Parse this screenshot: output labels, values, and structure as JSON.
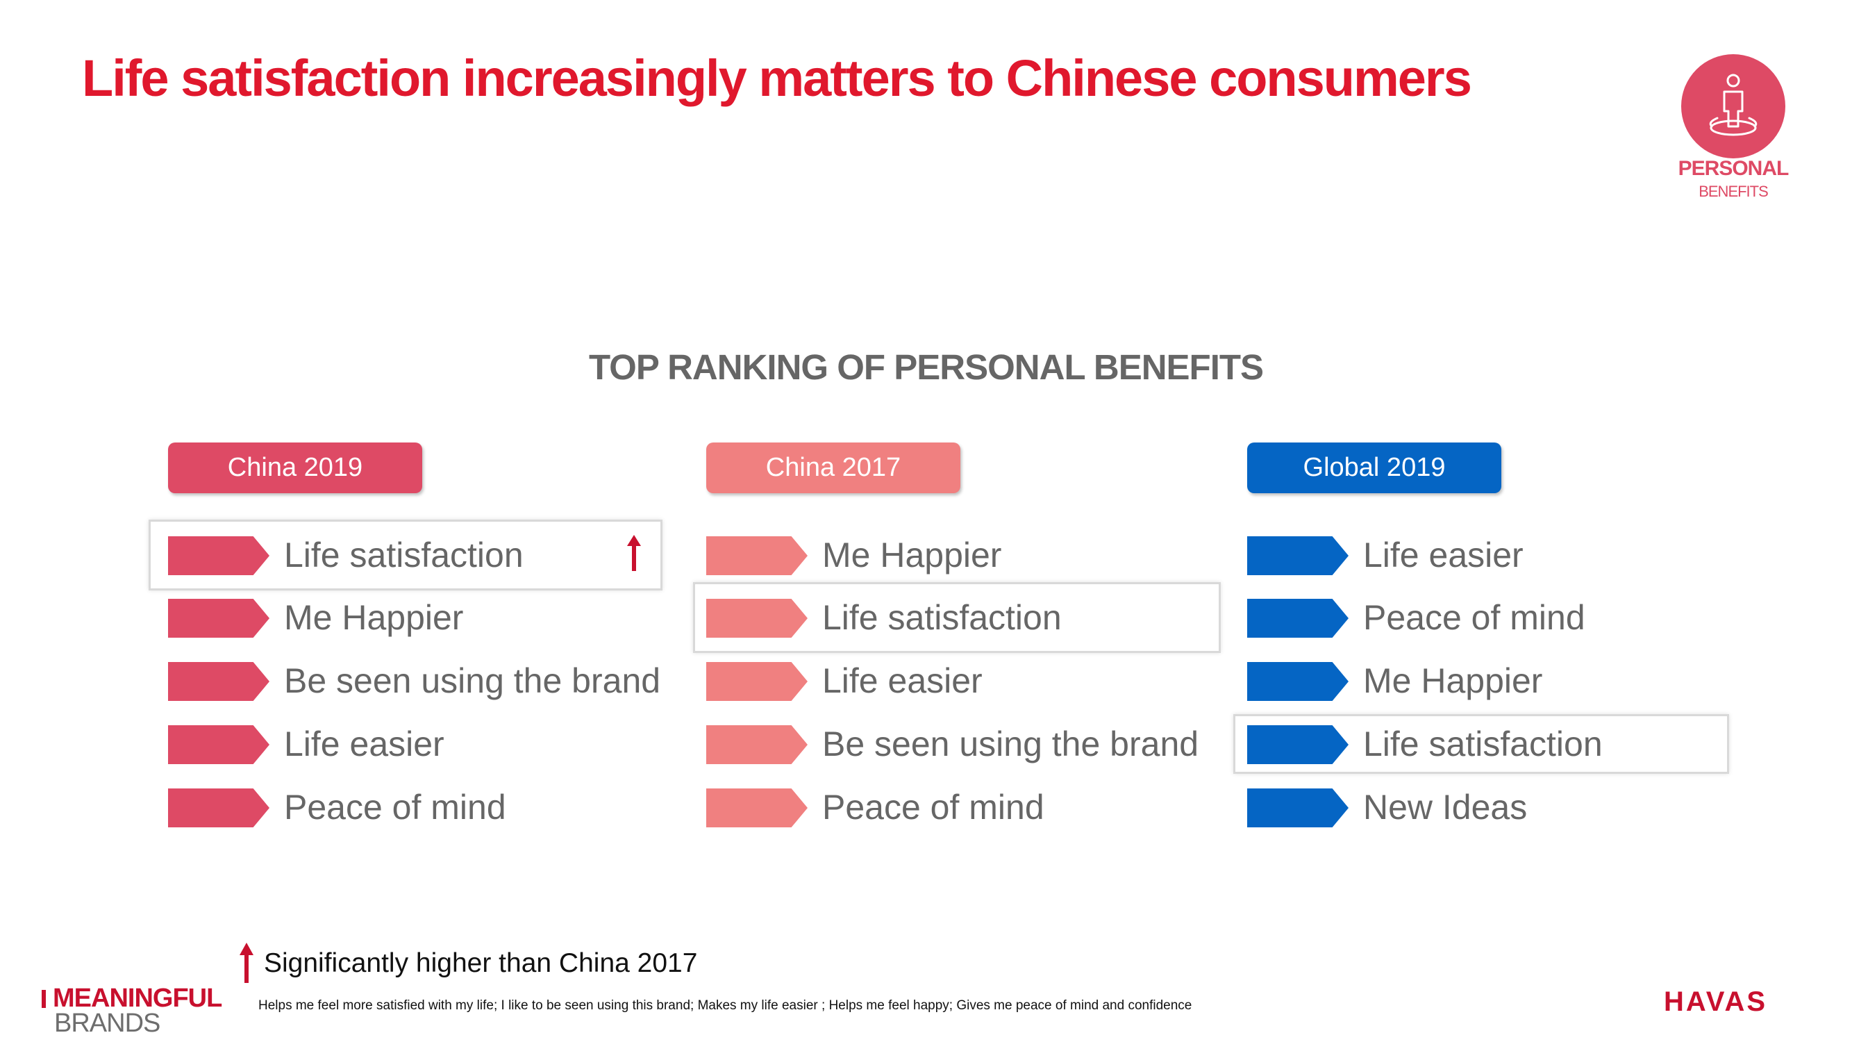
{
  "title": "Life satisfaction increasingly matters to Chinese consumers",
  "badge": {
    "icon": "person-on-platform-icon",
    "line1": "PERSONAL",
    "line2": "BENEFITS"
  },
  "section_title": "TOP RANKING OF PERSONAL BENEFITS",
  "columns": [
    {
      "header": "China 2019",
      "color": "#de4a65",
      "items": [
        "Life satisfaction",
        "Me Happier",
        "Be seen using the brand",
        "Life easier",
        "Peace of mind"
      ],
      "highlighted_index": 0,
      "significant_up_index": 0
    },
    {
      "header": "China 2017",
      "color": "#f08080",
      "items": [
        "Me Happier",
        "Life satisfaction",
        "Life easier",
        "Be seen using the brand",
        "Peace of mind"
      ],
      "highlighted_index": 1
    },
    {
      "header": "Global 2019",
      "color": "#0565c4",
      "items": [
        "Life easier",
        "Peace of mind",
        "Me Happier",
        "Life satisfaction",
        "New Ideas"
      ],
      "highlighted_index": 3
    }
  ],
  "legend": {
    "icon": "up-arrow-icon",
    "text": "Significantly higher than China 2017"
  },
  "footnote": "Helps me feel more satisfied with my life; I like to be seen using this brand; Makes my life easier ; Helps me feel happy; Gives me peace of mind and confidence",
  "brand_logo": {
    "line1": "MEANINGFUL",
    "line2": "BRANDS"
  },
  "havas_logo": "HAVAS",
  "colors": {
    "title": "#e0182d",
    "badge": "#de4a65",
    "section_title": "#666666",
    "arrow": "#c8102e",
    "logo_red": "#c8102e",
    "logo_gray": "#6d6d6d"
  }
}
